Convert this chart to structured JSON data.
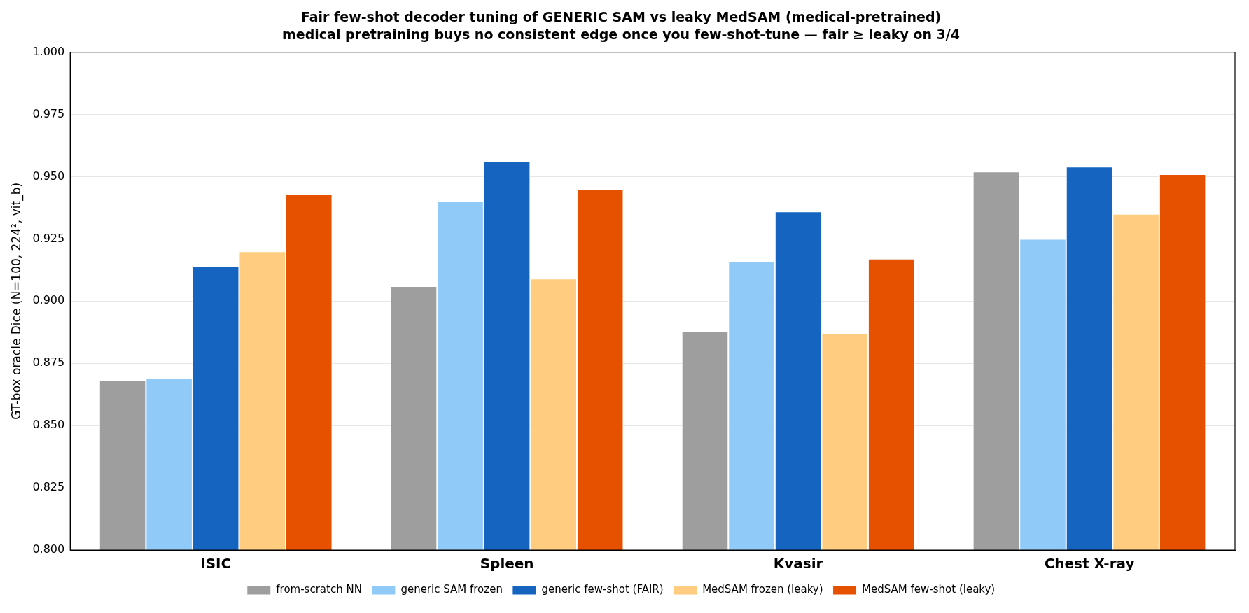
{
  "chart_data": {
    "type": "bar",
    "title": "Fair few-shot decoder tuning of GENERIC SAM vs leaky MedSAM (medical-pretrained)",
    "subtitle": "medical pretraining buys no consistent edge once you few-shot-tune — fair ≥ leaky on 3/4",
    "ylabel": "GT-box oracle Dice (N=100, 224², vit_b)",
    "categories": [
      "ISIC",
      "Spleen",
      "Kvasir",
      "Chest X-ray"
    ],
    "series": [
      {
        "name": "from-scratch NN",
        "color": "#9e9e9e",
        "values": [
          0.868,
          0.906,
          0.888,
          0.952
        ]
      },
      {
        "name": "generic SAM frozen",
        "color": "#90caf9",
        "values": [
          0.869,
          0.94,
          0.916,
          0.925
        ]
      },
      {
        "name": "generic few-shot (FAIR)",
        "color": "#1565c0",
        "values": [
          0.914,
          0.956,
          0.936,
          0.954
        ]
      },
      {
        "name": "MedSAM frozen (leaky)",
        "color": "#ffcc80",
        "values": [
          0.92,
          0.909,
          0.887,
          0.935
        ]
      },
      {
        "name": "MedSAM few-shot (leaky)",
        "color": "#e65100",
        "values": [
          0.943,
          0.945,
          0.917,
          0.951
        ]
      }
    ],
    "ylim": [
      0.8,
      1.0
    ],
    "yticks": [
      {
        "value": 0.8,
        "label": "0.800"
      },
      {
        "value": 0.825,
        "label": "0.825"
      },
      {
        "value": 0.85,
        "label": "0.850"
      },
      {
        "value": 0.875,
        "label": "0.875"
      },
      {
        "value": 0.9,
        "label": "0.900"
      },
      {
        "value": 0.925,
        "label": "0.925"
      },
      {
        "value": 0.95,
        "label": "0.950"
      },
      {
        "value": 0.975,
        "label": "0.975"
      },
      {
        "value": 1.0,
        "label": "1.000"
      }
    ],
    "grid": "y",
    "legend": "bottom"
  }
}
